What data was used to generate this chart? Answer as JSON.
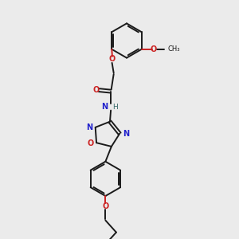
{
  "bg_color": "#ebebeb",
  "bond_color": "#1a1a1a",
  "N_color": "#2222cc",
  "O_color": "#cc2222",
  "font_size": 7.0,
  "linewidth": 1.4,
  "figsize": [
    3.0,
    3.0
  ],
  "dpi": 100,
  "xlim": [
    0,
    10
  ],
  "ylim": [
    0,
    10
  ]
}
